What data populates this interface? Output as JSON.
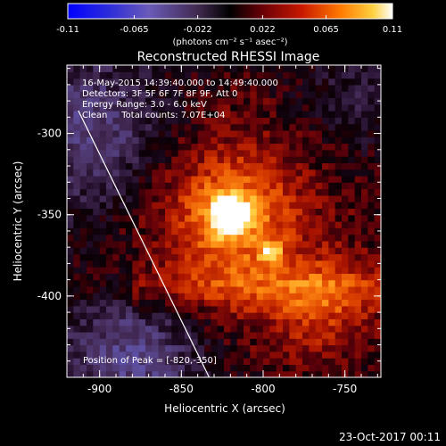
{
  "colorbar": {
    "ticks": [
      "-0.11",
      "-0.065",
      "-0.022",
      "0.022",
      "0.065",
      "0.11"
    ],
    "range": [
      -0.11,
      0.11
    ],
    "unit_label": "(photons cm⁻² s⁻¹ asec⁻²)"
  },
  "chart_data": {
    "type": "heatmap",
    "title": "Reconstructed RHESSI Image",
    "xlabel": "Heliocentric X (arcsec)",
    "ylabel": "Heliocentric Y (arcsec)",
    "xlim": [
      -920,
      -728
    ],
    "ylim": [
      -450,
      -258
    ],
    "x_ticks": [
      "-900",
      "-850",
      "-800",
      "-750"
    ],
    "x_tick_values": [
      -900,
      -850,
      -800,
      -750
    ],
    "y_ticks": [
      "-300",
      "-350",
      "-400"
    ],
    "y_tick_values": [
      -300,
      -350,
      -400
    ],
    "info_lines": [
      "16-May-2015 14:39:40.000 to 14:49:40.000",
      "Detectors: 3F 5F 6F 7F 8F 9F, Att 0",
      "Energy Range: 3.0 - 6.0 keV",
      "Clean     Total counts: 7.07E+04"
    ],
    "peak_label": "Position of Peak = [-820,-350]",
    "peak": [
      -820,
      -350
    ],
    "secondary_source": [
      -795,
      -373
    ],
    "limb_line": [
      [
        -913,
        -286
      ],
      [
        -833,
        -450
      ]
    ]
  },
  "timestamp": "23-Oct-2017 00:11"
}
